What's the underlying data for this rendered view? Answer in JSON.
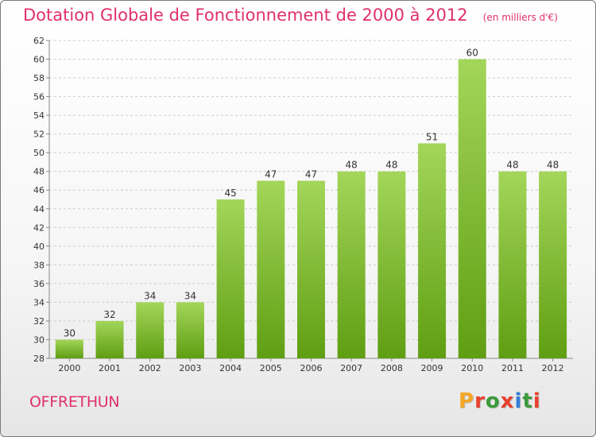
{
  "header": {
    "title": "Dotation Globale de Fonctionnement de 2000 à 2012",
    "subtitle": "(en milliers d'€)"
  },
  "footer": {
    "commune": "OFFRETHUN",
    "brand": "Proxiti"
  },
  "colors": {
    "bar_top": "#a3d65a",
    "bar_bottom": "#5f9e12",
    "title": "#e0306a",
    "grid": "#cccccc",
    "brand_letters": [
      "#f5a623",
      "#e8412c",
      "#3a9a3a",
      "#e8412c",
      "#2f7fd8",
      "#3a9a3a",
      "#e8412c"
    ]
  },
  "chart_data": {
    "type": "bar",
    "title": "Dotation Globale de Fonctionnement de 2000 à 2012",
    "subtitle": "(en milliers d'€)",
    "categories": [
      "2000",
      "2001",
      "2002",
      "2003",
      "2004",
      "2005",
      "2006",
      "2007",
      "2008",
      "2009",
      "2010",
      "2011",
      "2012"
    ],
    "values": [
      30,
      32,
      34,
      34,
      45,
      47,
      47,
      48,
      48,
      51,
      60,
      48,
      48
    ],
    "xlabel": "",
    "ylabel": "",
    "ylim": [
      28,
      62
    ],
    "yticks": [
      28,
      30,
      32,
      34,
      36,
      38,
      40,
      42,
      44,
      46,
      48,
      50,
      52,
      54,
      56,
      58,
      60,
      62
    ],
    "grid": true,
    "data_labels": true
  }
}
